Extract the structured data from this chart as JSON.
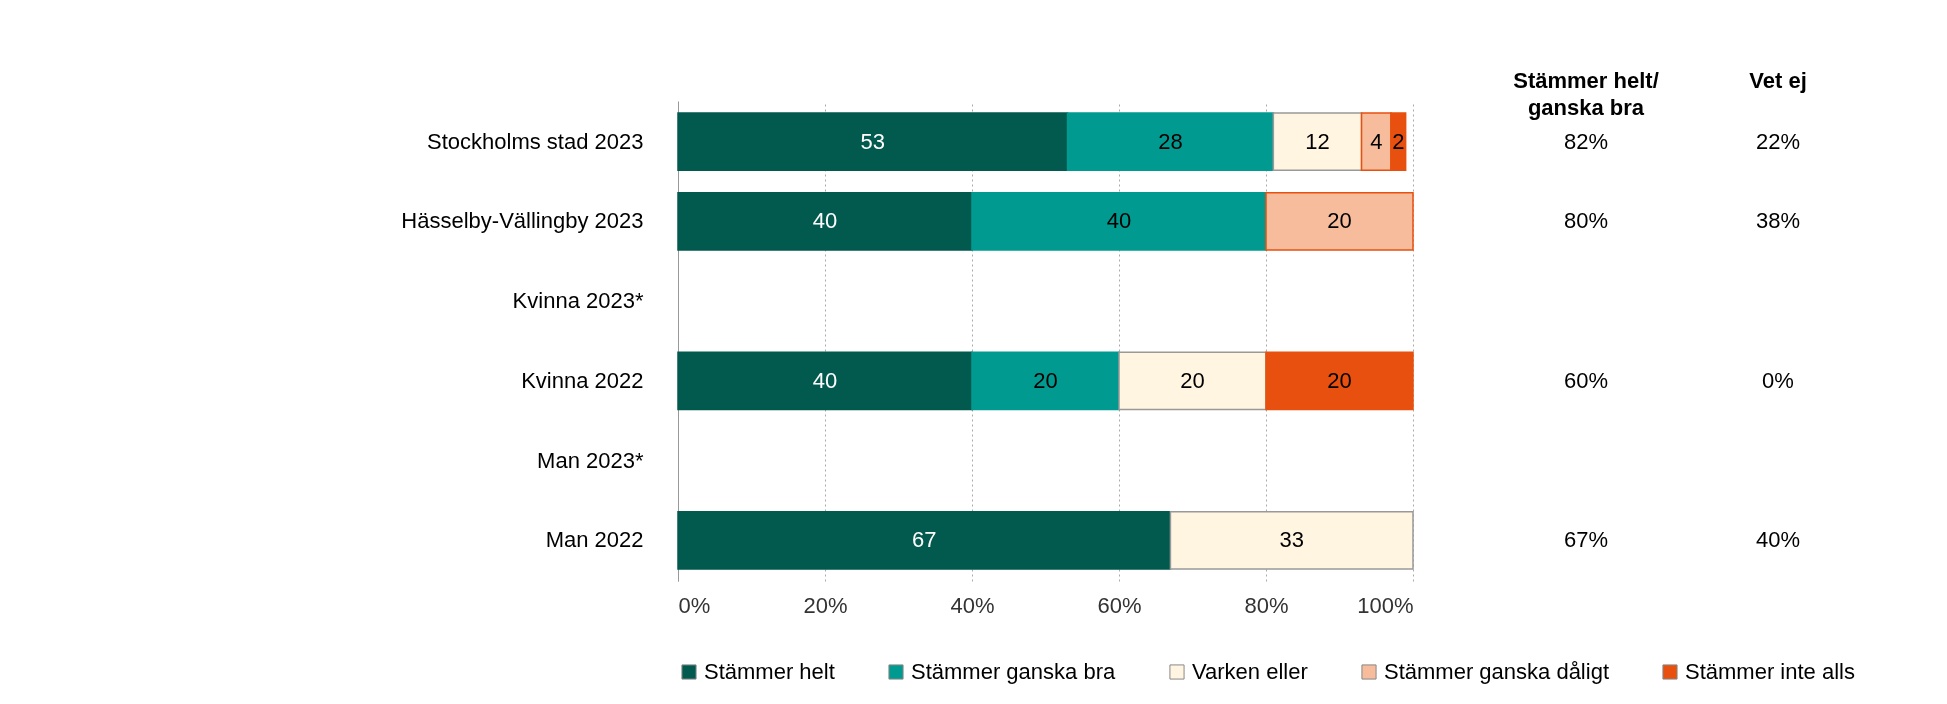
{
  "chart_data": {
    "type": "bar",
    "orientation": "horizontal",
    "stacked": true,
    "categories": [
      "Stockholms stad 2023",
      "Hässelby-Vällingby 2023",
      "Kvinna 2023*",
      "Kvinna 2022",
      "Man 2023*",
      "Man 2022"
    ],
    "series": [
      {
        "name": "Stämmer helt",
        "color": "#025a4e",
        "values": [
          53,
          40,
          null,
          40,
          null,
          67
        ]
      },
      {
        "name": "Stämmer ganska bra",
        "color": "#009a91",
        "values": [
          28,
          40,
          null,
          20,
          null,
          null
        ]
      },
      {
        "name": "Varken eller",
        "color": "#fff5e1",
        "values": [
          12,
          null,
          null,
          20,
          null,
          33
        ]
      },
      {
        "name": "Stämmer ganska dåligt",
        "color": "#f7bc9c",
        "values": [
          4,
          20,
          null,
          null,
          null,
          null
        ]
      },
      {
        "name": "Stämmer inte alls",
        "color": "#e8500f",
        "values": [
          2,
          null,
          null,
          20,
          null,
          null
        ]
      }
    ],
    "xlim": [
      0,
      100
    ],
    "xticks": [
      {
        "value": 0,
        "label": "0%"
      },
      {
        "value": 20,
        "label": "20%"
      },
      {
        "value": 40,
        "label": "40%"
      },
      {
        "value": 60,
        "label": "60%"
      },
      {
        "value": 80,
        "label": "80%"
      },
      {
        "value": 100,
        "label": "100%"
      }
    ],
    "grid": "x",
    "legend": "bottom",
    "data_labels": true,
    "annotations": [
      "Stämmer helt/ganska bra",
      "Vet ej",
      "82%",
      "22%",
      "80%",
      "38%",
      "60%",
      "0%",
      "67%",
      "40%"
    ]
  }
}
